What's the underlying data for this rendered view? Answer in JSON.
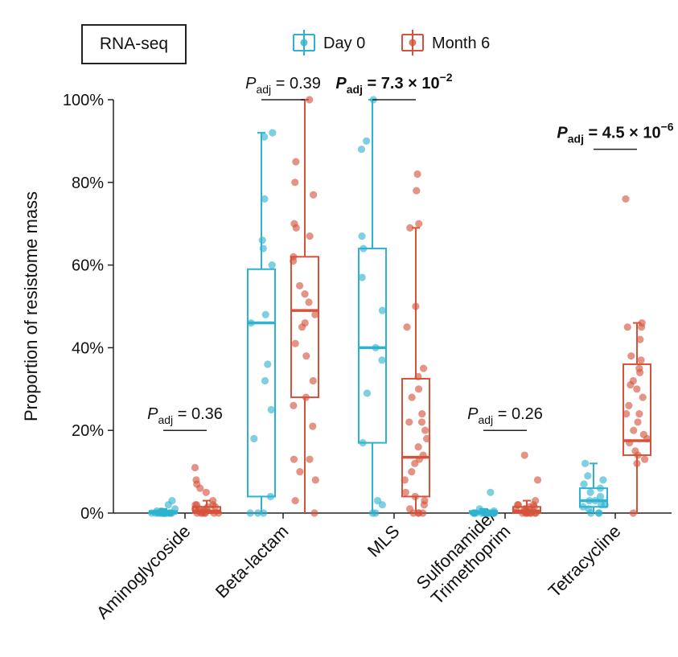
{
  "panel_label": "RNA-seq",
  "chart_data": {
    "type": "box",
    "ylabel": "Proportion of resistome mass",
    "ylim": [
      0,
      100
    ],
    "yticks": [
      0,
      20,
      40,
      60,
      80,
      100
    ],
    "ytick_labels": [
      "0%",
      "20%",
      "40%",
      "60%",
      "80%",
      "100%"
    ],
    "categories": [
      "Aminoglycoside",
      "Beta-lactam",
      "MLS",
      "Sulfonamide/\nTrimethoprim",
      "Tetracycline"
    ],
    "legend": {
      "position": "top",
      "items": [
        {
          "name": "Day 0",
          "color": "#2db2cf"
        },
        {
          "name": "Month 6",
          "color": "#d4533a"
        }
      ]
    },
    "series": [
      {
        "name": "Day 0",
        "color": "#2db2cf",
        "boxes": [
          {
            "q1": 0,
            "median": 0,
            "q3": 0.5,
            "whisker_low": 0,
            "whisker_high": 1
          },
          {
            "q1": 4,
            "median": 46,
            "q3": 59,
            "whisker_low": 0,
            "whisker_high": 92
          },
          {
            "q1": 17,
            "median": 40,
            "q3": 64,
            "whisker_low": 0,
            "whisker_high": 100
          },
          {
            "q1": 0,
            "median": 0,
            "q3": 0.5,
            "whisker_low": 0,
            "whisker_high": 1
          },
          {
            "q1": 1.5,
            "median": 3,
            "q3": 6,
            "whisker_low": 0,
            "whisker_high": 12
          }
        ],
        "points": [
          [
            0,
            0,
            0,
            0,
            0,
            0,
            0,
            0,
            0,
            0,
            0,
            0,
            0,
            0,
            0,
            0,
            0.5,
            0.5,
            1,
            2,
            3
          ],
          [
            0,
            0,
            0,
            4,
            18,
            25,
            32,
            36,
            46,
            48,
            60,
            64,
            66,
            76,
            91,
            92
          ],
          [
            0,
            0,
            2,
            3,
            17,
            29,
            37,
            40,
            49,
            57,
            64,
            67,
            88,
            90,
            100
          ],
          [
            0,
            0,
            0,
            0,
            0,
            0,
            0,
            0,
            0,
            0,
            0,
            0,
            0,
            0,
            0,
            0,
            0.5,
            1,
            5
          ],
          [
            0,
            0,
            0,
            1,
            1.5,
            2,
            2,
            3,
            3,
            4,
            5,
            6,
            7,
            8,
            9,
            12
          ]
        ]
      },
      {
        "name": "Month 6",
        "color": "#d4533a",
        "boxes": [
          {
            "q1": 0,
            "median": 0.5,
            "q3": 1.5,
            "whisker_low": 0,
            "whisker_high": 3
          },
          {
            "q1": 28,
            "median": 49,
            "q3": 62,
            "whisker_low": 0,
            "whisker_high": 100
          },
          {
            "q1": 4,
            "median": 13.5,
            "q3": 32.5,
            "whisker_low": 0,
            "whisker_high": 69
          },
          {
            "q1": 0,
            "median": 0.5,
            "q3": 1.5,
            "whisker_low": 0,
            "whisker_high": 3
          },
          {
            "q1": 14,
            "median": 17.5,
            "q3": 36,
            "whisker_low": 0,
            "whisker_high": 46
          }
        ],
        "points": [
          [
            0,
            0,
            0,
            0,
            0,
            0,
            0,
            0.5,
            0.5,
            1,
            1,
            1,
            1.5,
            1.5,
            2,
            2,
            2,
            3,
            5,
            6,
            7,
            8,
            11
          ],
          [
            0,
            3,
            8,
            10,
            13,
            13,
            21,
            26,
            28,
            32,
            38,
            41,
            45,
            46,
            48,
            51,
            53,
            55,
            61,
            62,
            67,
            69,
            70,
            77,
            80,
            85,
            100
          ],
          [
            0,
            0,
            0,
            0,
            1,
            2,
            3,
            4,
            5,
            8,
            10,
            12,
            13,
            14,
            16,
            18,
            20,
            22,
            22,
            24,
            28,
            30,
            33,
            35,
            45,
            50,
            69,
            70,
            78,
            82
          ],
          [
            0,
            0,
            0,
            0,
            0,
            0,
            0,
            0,
            0.5,
            0.5,
            1,
            1,
            1,
            1.5,
            1.5,
            2,
            2,
            2,
            3,
            8,
            14
          ],
          [
            0,
            12,
            13,
            14,
            15,
            17,
            18,
            19,
            20,
            22,
            24,
            24,
            26,
            28,
            30,
            31,
            32,
            34,
            35,
            37,
            38,
            42,
            45,
            45,
            46,
            76
          ]
        ]
      }
    ],
    "annotations": [
      {
        "category_index": 0,
        "y": 20,
        "stat": "P",
        "sub": "adj",
        "text": "= 0.36",
        "bold": false
      },
      {
        "category_index": 1,
        "y": 100,
        "stat": "P",
        "sub": "adj",
        "text": "= 0.39",
        "bold": false
      },
      {
        "category_index": 2,
        "y": 100,
        "stat": "P",
        "sub": "adj",
        "text": "= 7.3 × 10",
        "exp": "−2",
        "bold": true
      },
      {
        "category_index": 3,
        "y": 20,
        "stat": "P",
        "sub": "adj",
        "text": "= 0.26",
        "bold": false
      },
      {
        "category_index": 4,
        "y": 88,
        "stat": "P",
        "sub": "adj",
        "text": "= 4.5 × 10",
        "exp": "−6",
        "bold": true
      }
    ]
  }
}
